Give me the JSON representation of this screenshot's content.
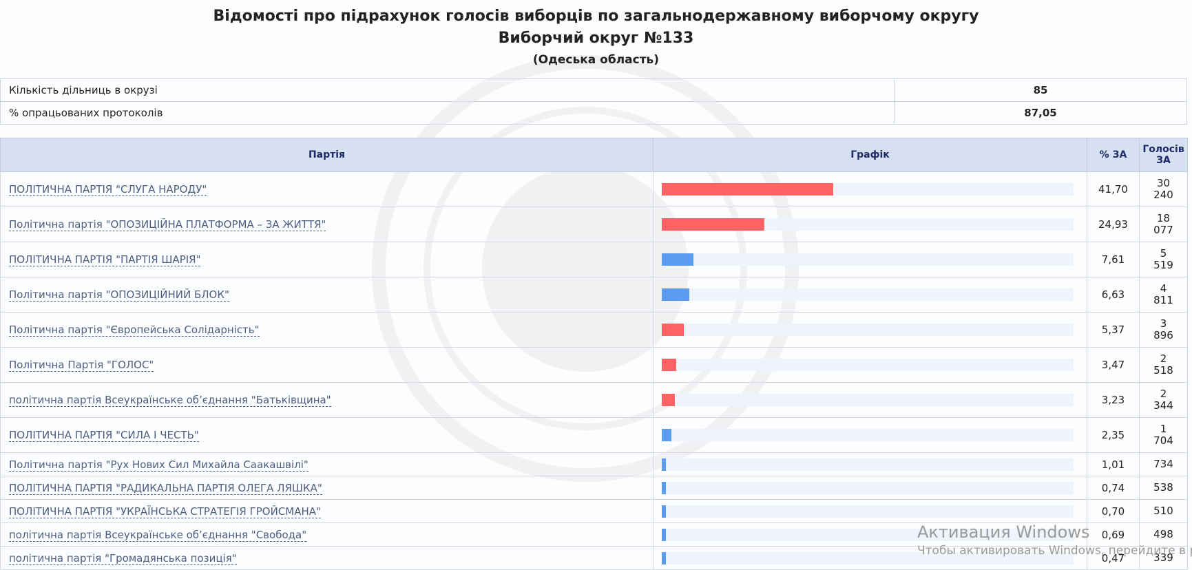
{
  "header": {
    "title_line1": "Відомості про підрахунок голосів виборців по загальнодержавному виборчому округу",
    "title_line2": "Виборчий округ №133",
    "subtitle": "(Одеська область)"
  },
  "info": [
    {
      "label": "Кількість дільниць в окрузі",
      "value": "85"
    },
    {
      "label": "% опрацьованих протоколів",
      "value": "87,05"
    }
  ],
  "table": {
    "headers": {
      "party": "Партія",
      "chart": "Графік",
      "percent": "% ЗА",
      "votes_line1": "Голосів",
      "votes_line2": "ЗА"
    },
    "colors": {
      "red": "#ff6363",
      "blue": "#5b9cf0"
    },
    "rows": [
      {
        "party": "ПОЛІТИЧНА ПАРТІЯ \"СЛУГА НАРОДУ\"",
        "percent": "41,70",
        "share": 41.7,
        "color": "red",
        "votes_line1": "30",
        "votes_line2": "240"
      },
      {
        "party": "Політична партія \"ОПОЗИЦІЙНА ПЛАТФОРМА – ЗА ЖИТТЯ\"",
        "percent": "24,93",
        "share": 24.93,
        "color": "red",
        "votes_line1": "18",
        "votes_line2": "077"
      },
      {
        "party": "ПОЛІТИЧНА ПАРТІЯ \"ПАРТІЯ ШАРІЯ\"",
        "percent": "7,61",
        "share": 7.61,
        "color": "blue",
        "votes_line1": "5",
        "votes_line2": "519"
      },
      {
        "party": "Політична партія \"ОПОЗИЦІЙНИЙ БЛОК\"",
        "percent": "6,63",
        "share": 6.63,
        "color": "blue",
        "votes_line1": "4",
        "votes_line2": "811"
      },
      {
        "party": "Політична партія \"Європейська Солідарність\"",
        "percent": "5,37",
        "share": 5.37,
        "color": "red",
        "votes_line1": "3",
        "votes_line2": "896"
      },
      {
        "party": "Політична Партія \"ГОЛОС\"",
        "percent": "3,47",
        "share": 3.47,
        "color": "red",
        "votes_line1": "2",
        "votes_line2": "518"
      },
      {
        "party": "політична партія Всеукраїнське об’єднання \"Батьківщина\"",
        "percent": "3,23",
        "share": 3.23,
        "color": "red",
        "votes_line1": "2",
        "votes_line2": "344"
      },
      {
        "party": "ПОЛІТИЧНА ПАРТІЯ \"СИЛА І ЧЕСТЬ\"",
        "percent": "2,35",
        "share": 2.35,
        "color": "blue",
        "votes_line1": "1",
        "votes_line2": "704"
      },
      {
        "party": "Політична партія \"Рух Нових Сил Михайла Саакашвілі\"",
        "percent": "1,01",
        "share": 1.01,
        "color": "blue",
        "votes_line1": "734",
        "votes_line2": ""
      },
      {
        "party": "ПОЛІТИЧНА ПАРТІЯ \"РАДИКАЛЬНА ПАРТІЯ ОЛЕГА ЛЯШКА\"",
        "percent": "0,74",
        "share": 0.74,
        "color": "blue",
        "votes_line1": "538",
        "votes_line2": ""
      },
      {
        "party": "ПОЛІТИЧНА ПАРТІЯ \"УКРАЇНСЬКА СТРАТЕГІЯ ГРОЙСМАНА\"",
        "percent": "0,70",
        "share": 0.7,
        "color": "blue",
        "votes_line1": "510",
        "votes_line2": ""
      },
      {
        "party": "політична партія Всеукраїнське об’єднання \"Свобода\"",
        "percent": "0,69",
        "share": 0.69,
        "color": "blue",
        "votes_line1": "498",
        "votes_line2": ""
      },
      {
        "party": "політична партія \"Громадянська позиція\"",
        "percent": "0,47",
        "share": 0.47,
        "color": "blue",
        "votes_line1": "339",
        "votes_line2": ""
      }
    ]
  },
  "windows_activation": {
    "line1": "Активация Windows",
    "line2": "Чтобы активировать Windows, перейдите в раздел"
  }
}
